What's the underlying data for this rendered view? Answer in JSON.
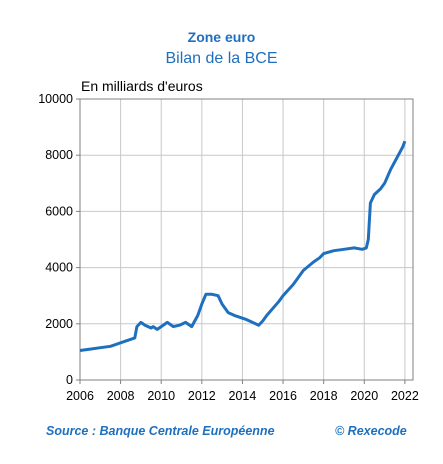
{
  "header": {
    "region": "Zone euro",
    "title": "Bilan de la BCE"
  },
  "footer": {
    "source": "Source : Banque Centrale Européenne",
    "copyright": "© Rexecode"
  },
  "chart_data": {
    "type": "line",
    "title": "Bilan de la BCE",
    "subtitle": "Zone euro",
    "ylabel": "En milliards d'euros",
    "xlabel": "",
    "xlim": [
      2006,
      2022.4
    ],
    "ylim": [
      0,
      10000
    ],
    "x_ticks": [
      2006,
      2008,
      2010,
      2012,
      2014,
      2016,
      2018,
      2020,
      2022
    ],
    "y_ticks": [
      0,
      2000,
      4000,
      6000,
      8000,
      10000
    ],
    "grid": true,
    "line_color": "#1f6fbf",
    "series": [
      {
        "x": [
          2006.0,
          2006.5,
          2007.0,
          2007.5,
          2007.9,
          2008.3,
          2008.7,
          2008.8,
          2009.0,
          2009.2,
          2009.5,
          2009.6,
          2009.8,
          2010.0,
          2010.3,
          2010.6,
          2010.9,
          2011.2,
          2011.5,
          2011.8,
          2012.0,
          2012.2,
          2012.5,
          2012.8,
          2013.0,
          2013.3,
          2013.6,
          2013.8,
          2014.2,
          2014.5,
          2014.8,
          2015.0,
          2015.2,
          2015.5,
          2015.8,
          2016.0,
          2016.5,
          2017.0,
          2017.5,
          2017.8,
          2018.0,
          2018.5,
          2019.0,
          2019.5,
          2019.9,
          2020.1,
          2020.2,
          2020.3,
          2020.5,
          2020.8,
          2021.0,
          2021.3,
          2021.6,
          2021.9,
          2022.0
        ],
        "values": [
          1050,
          1100,
          1150,
          1200,
          1300,
          1400,
          1500,
          1900,
          2050,
          1950,
          1850,
          1900,
          1800,
          1900,
          2050,
          1900,
          1950,
          2050,
          1900,
          2300,
          2700,
          3050,
          3050,
          3000,
          2700,
          2400,
          2300,
          2250,
          2150,
          2050,
          1950,
          2100,
          2300,
          2550,
          2800,
          3000,
          3400,
          3900,
          4200,
          4350,
          4500,
          4600,
          4650,
          4700,
          4650,
          4700,
          5000,
          6300,
          6600,
          6800,
          7000,
          7500,
          7900,
          8300,
          8500
        ]
      }
    ]
  }
}
